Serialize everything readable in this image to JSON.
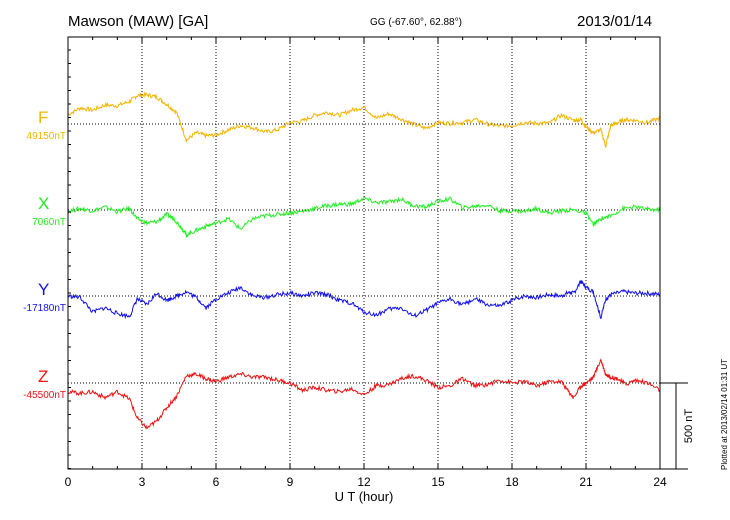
{
  "header": {
    "station": "Mawson (MAW)  [GA]",
    "coords": "GG (-67.60°,  62.88°)",
    "date": "2013/01/14"
  },
  "footnote": "Plotted at 2013/02/14 01:31  UT",
  "chart_data": {
    "type": "line",
    "xlabel": "U T (hour)",
    "xlim": [
      0,
      24
    ],
    "xticks": [
      0,
      3,
      6,
      9,
      12,
      15,
      18,
      21,
      24
    ],
    "scale_bar_label": "500 nT",
    "scale_bar_nT": 500,
    "grid": "dotted vertical lines every 3 h; dotted baseline per component",
    "series": [
      {
        "name": "F",
        "baseline_label": "49150nT",
        "baseline_nT": 49150,
        "color": "#f4b400",
        "x": [
          0,
          0.5,
          1,
          1.5,
          2,
          2.5,
          2.8,
          3.2,
          3.6,
          4,
          4.4,
          4.8,
          5.2,
          5.6,
          6,
          6.5,
          7,
          7.5,
          8,
          8.5,
          9,
          9.5,
          10,
          10.5,
          11,
          11.5,
          12,
          12.5,
          13,
          13.5,
          14,
          14.5,
          15,
          15.5,
          16,
          16.5,
          17,
          17.5,
          18,
          18.5,
          19,
          19.5,
          20,
          20.5,
          20.8,
          21,
          21.3,
          21.6,
          21.8,
          22,
          22.3,
          22.6,
          23,
          23.5,
          24
        ],
        "y": [
          65,
          110,
          95,
          130,
          125,
          155,
          195,
          200,
          185,
          135,
          80,
          -110,
          -60,
          -80,
          -75,
          -40,
          -10,
          -25,
          -55,
          -40,
          10,
          20,
          60,
          80,
          60,
          95,
          115,
          40,
          70,
          35,
          0,
          -30,
          10,
          5,
          10,
          30,
          0,
          -15,
          -10,
          10,
          5,
          5,
          60,
          25,
          30,
          -20,
          -60,
          -40,
          -150,
          -10,
          10,
          30,
          25,
          10,
          40
        ]
      },
      {
        "name": "X",
        "baseline_label": "7060nT",
        "baseline_nT": 7060,
        "color": "#22ee22",
        "x": [
          0,
          0.5,
          1,
          1.5,
          2,
          2.5,
          2.8,
          3.2,
          3.6,
          4,
          4.3,
          4.6,
          4.8,
          5.2,
          5.6,
          6,
          6.5,
          7,
          7.5,
          8,
          8.5,
          9,
          9.5,
          10,
          10.5,
          11,
          11.5,
          12,
          12.5,
          13,
          13.5,
          14,
          14.5,
          15,
          15.5,
          16,
          16.5,
          17,
          17.5,
          18,
          18.5,
          19,
          19.5,
          20,
          20.5,
          21,
          21.3,
          21.6,
          22,
          22.5,
          23,
          23.5,
          24
        ],
        "y": [
          -10,
          10,
          -5,
          20,
          -10,
          10,
          -60,
          -90,
          -80,
          -30,
          -60,
          -120,
          -170,
          -140,
          -110,
          -90,
          -60,
          -130,
          -60,
          -40,
          -30,
          -20,
          -10,
          10,
          30,
          40,
          40,
          80,
          50,
          55,
          75,
          30,
          20,
          60,
          75,
          15,
          25,
          35,
          -5,
          -5,
          -10,
          10,
          -20,
          -5,
          0,
          -20,
          -100,
          -60,
          -40,
          10,
          20,
          5,
          0
        ]
      },
      {
        "name": "Y",
        "baseline_label": "-17180nT",
        "baseline_nT": -17180,
        "color": "#1111ee",
        "x": [
          0,
          0.5,
          1,
          1.5,
          2,
          2.5,
          2.8,
          3.2,
          3.6,
          4,
          4.4,
          4.8,
          5.2,
          5.6,
          6,
          6.5,
          7,
          7.5,
          8,
          8.5,
          9,
          9.5,
          10,
          10.5,
          11,
          11.5,
          12,
          12.5,
          13,
          13.5,
          14,
          14.5,
          15,
          15.5,
          16,
          16.5,
          17,
          17.5,
          18,
          18.5,
          19,
          19.5,
          20,
          20.3,
          20.5,
          20.8,
          21,
          21.3,
          21.6,
          21.8,
          22,
          22.5,
          23,
          23.5,
          24
        ],
        "y": [
          0,
          -10,
          -110,
          -80,
          -120,
          -140,
          -20,
          -60,
          20,
          -30,
          0,
          30,
          -10,
          -80,
          -20,
          20,
          60,
          0,
          -10,
          10,
          20,
          0,
          20,
          10,
          -30,
          -50,
          -110,
          -130,
          -90,
          -80,
          -140,
          -100,
          -50,
          -20,
          -60,
          -20,
          -60,
          -70,
          -30,
          0,
          -10,
          10,
          0,
          25,
          20,
          100,
          60,
          30,
          -150,
          -20,
          10,
          30,
          20,
          20,
          10
        ]
      },
      {
        "name": "Z",
        "baseline_label": "-45500nT",
        "baseline_nT": -45500,
        "color": "#ee1111",
        "x": [
          0,
          0.5,
          1,
          1.5,
          2,
          2.5,
          2.8,
          3.2,
          3.6,
          4,
          4.4,
          4.8,
          5.2,
          5.6,
          6,
          6.5,
          7,
          7.5,
          8,
          8.5,
          9,
          9.5,
          10,
          10.5,
          11,
          11.5,
          12,
          12.5,
          13,
          13.5,
          14,
          14.5,
          15,
          15.5,
          16,
          16.5,
          17,
          17.5,
          18,
          18.5,
          19,
          19.5,
          20,
          20.3,
          20.5,
          20.8,
          21,
          21.3,
          21.6,
          21.8,
          22,
          22.3,
          22.6,
          23,
          23.5,
          24
        ],
        "y": [
          -60,
          -70,
          -60,
          -100,
          -60,
          -110,
          -240,
          -310,
          -260,
          -170,
          -90,
          50,
          60,
          30,
          10,
          40,
          60,
          40,
          40,
          20,
          0,
          -50,
          -30,
          -50,
          -60,
          -40,
          -80,
          -20,
          -10,
          30,
          50,
          20,
          -30,
          -20,
          30,
          -20,
          -10,
          20,
          0,
          10,
          -20,
          10,
          10,
          -60,
          -100,
          -20,
          0,
          40,
          160,
          60,
          40,
          30,
          -10,
          20,
          0,
          -50
        ]
      }
    ]
  }
}
